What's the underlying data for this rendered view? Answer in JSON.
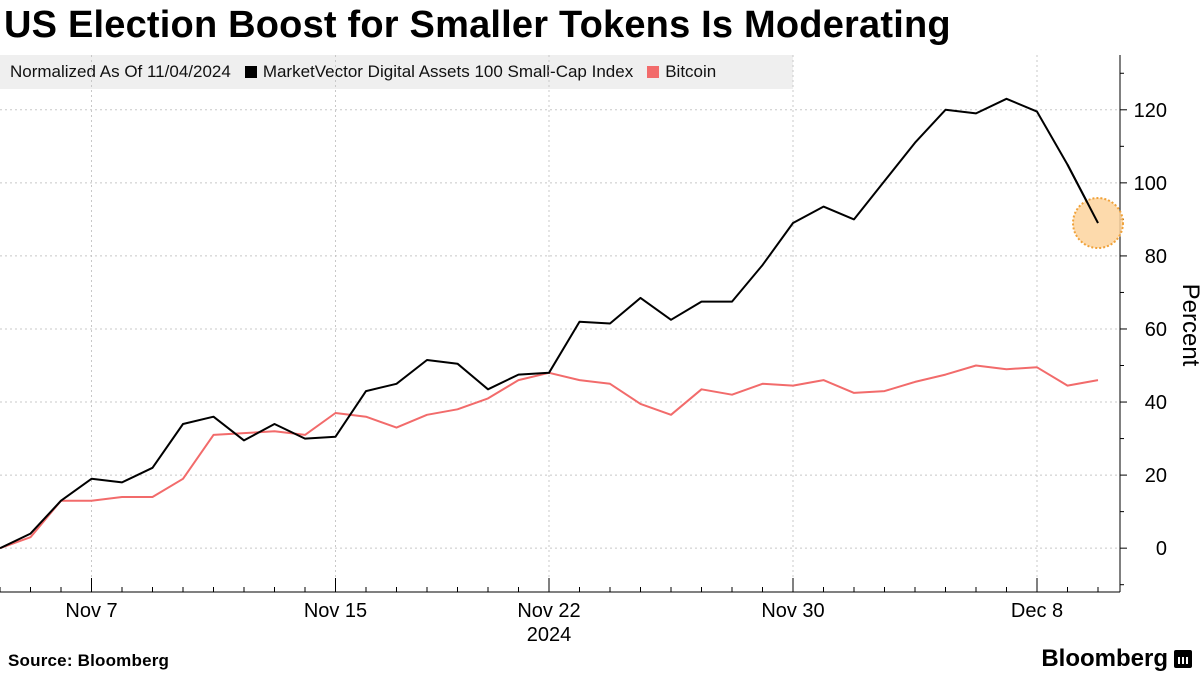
{
  "title": "US Election Boost for Smaller Tokens Is Moderating",
  "legend": {
    "note": "Normalized As Of 11/04/2024",
    "items": [
      {
        "label": "MarketVector Digital Assets 100 Small-Cap Index",
        "color": "#000000"
      },
      {
        "label": "Bitcoin",
        "color": "#f26b6b"
      }
    ]
  },
  "chart_data": {
    "type": "line",
    "ylabel": "Percent",
    "ylim": [
      -12,
      135
    ],
    "yticks": [
      0,
      20,
      40,
      60,
      80,
      100,
      120
    ],
    "grid": true,
    "x_start": "2024-11-04",
    "x_end": "2024-12-10",
    "xticks": [
      {
        "label": "Nov 7",
        "date": "2024-11-07"
      },
      {
        "label": "Nov 15",
        "date": "2024-11-15"
      },
      {
        "label": "Nov 22",
        "date": "2024-11-22"
      },
      {
        "label": "Nov 30",
        "date": "2024-11-30"
      },
      {
        "label": "Dec 8",
        "date": "2024-12-08"
      }
    ],
    "year_label": "2024",
    "series": [
      {
        "name": "MarketVector Digital Assets 100 Small-Cap Index",
        "color": "#000000",
        "points": [
          [
            "2024-11-04",
            0
          ],
          [
            "2024-11-05",
            4
          ],
          [
            "2024-11-06",
            13
          ],
          [
            "2024-11-07",
            19
          ],
          [
            "2024-11-08",
            18
          ],
          [
            "2024-11-09",
            22
          ],
          [
            "2024-11-10",
            34
          ],
          [
            "2024-11-11",
            36
          ],
          [
            "2024-11-12",
            29.5
          ],
          [
            "2024-11-13",
            34
          ],
          [
            "2024-11-14",
            30
          ],
          [
            "2024-11-15",
            30.5
          ],
          [
            "2024-11-16",
            43
          ],
          [
            "2024-11-17",
            45
          ],
          [
            "2024-11-18",
            51.5
          ],
          [
            "2024-11-19",
            50.5
          ],
          [
            "2024-11-20",
            43.5
          ],
          [
            "2024-11-21",
            47.5
          ],
          [
            "2024-11-22",
            48
          ],
          [
            "2024-11-23",
            62
          ],
          [
            "2024-11-24",
            61.5
          ],
          [
            "2024-11-25",
            68.5
          ],
          [
            "2024-11-26",
            62.5
          ],
          [
            "2024-11-27",
            67.5
          ],
          [
            "2024-11-28",
            67.5
          ],
          [
            "2024-11-29",
            77.5
          ],
          [
            "2024-11-30",
            89
          ],
          [
            "2024-12-01",
            93.5
          ],
          [
            "2024-12-02",
            90
          ],
          [
            "2024-12-03",
            100.5
          ],
          [
            "2024-12-04",
            111
          ],
          [
            "2024-12-05",
            120
          ],
          [
            "2024-12-06",
            119
          ],
          [
            "2024-12-07",
            123
          ],
          [
            "2024-12-08",
            119.5
          ],
          [
            "2024-12-09",
            105
          ],
          [
            "2024-12-10",
            89
          ]
        ]
      },
      {
        "name": "Bitcoin",
        "color": "#f26b6b",
        "points": [
          [
            "2024-11-04",
            0
          ],
          [
            "2024-11-05",
            3
          ],
          [
            "2024-11-06",
            13
          ],
          [
            "2024-11-07",
            13
          ],
          [
            "2024-11-08",
            14
          ],
          [
            "2024-11-09",
            14
          ],
          [
            "2024-11-10",
            19
          ],
          [
            "2024-11-11",
            31
          ],
          [
            "2024-11-12",
            31.5
          ],
          [
            "2024-11-13",
            32
          ],
          [
            "2024-11-14",
            31
          ],
          [
            "2024-11-15",
            37
          ],
          [
            "2024-11-16",
            36
          ],
          [
            "2024-11-17",
            33
          ],
          [
            "2024-11-18",
            36.5
          ],
          [
            "2024-11-19",
            38
          ],
          [
            "2024-11-20",
            41
          ],
          [
            "2024-11-21",
            46
          ],
          [
            "2024-11-22",
            48
          ],
          [
            "2024-11-23",
            46
          ],
          [
            "2024-11-24",
            45
          ],
          [
            "2024-11-25",
            39.5
          ],
          [
            "2024-11-26",
            36.5
          ],
          [
            "2024-11-27",
            43.5
          ],
          [
            "2024-11-28",
            42
          ],
          [
            "2024-11-29",
            45
          ],
          [
            "2024-11-30",
            44.5
          ],
          [
            "2024-12-01",
            46
          ],
          [
            "2024-12-02",
            42.5
          ],
          [
            "2024-12-03",
            43
          ],
          [
            "2024-12-04",
            45.5
          ],
          [
            "2024-12-05",
            47.5
          ],
          [
            "2024-12-06",
            50
          ],
          [
            "2024-12-07",
            49
          ],
          [
            "2024-12-08",
            49.5
          ],
          [
            "2024-12-09",
            44.5
          ],
          [
            "2024-12-10",
            46
          ]
        ]
      }
    ],
    "highlight": {
      "date": "2024-12-10",
      "value": 89,
      "color": "#fdd49e",
      "stroke": "#f0a23a"
    }
  },
  "footer": {
    "source": "Source: Bloomberg",
    "brand": "Bloomberg"
  }
}
